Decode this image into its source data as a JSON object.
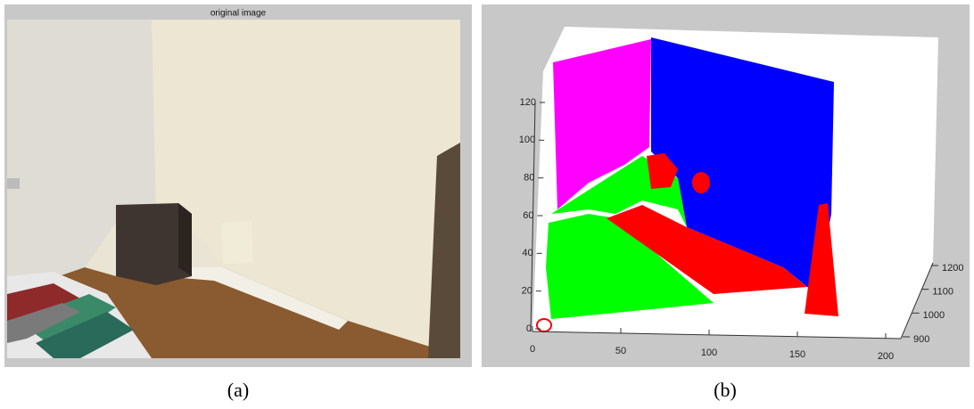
{
  "panel_a": {
    "title": "original image",
    "caption": "(a)"
  },
  "panel_b": {
    "caption": "(b)",
    "y_ticks": [
      0,
      20,
      40,
      60,
      80,
      100,
      120
    ],
    "x_ticks": [
      0,
      50,
      100,
      150,
      200
    ],
    "z_ticks": [
      900,
      1000,
      1100,
      1200
    ]
  }
}
